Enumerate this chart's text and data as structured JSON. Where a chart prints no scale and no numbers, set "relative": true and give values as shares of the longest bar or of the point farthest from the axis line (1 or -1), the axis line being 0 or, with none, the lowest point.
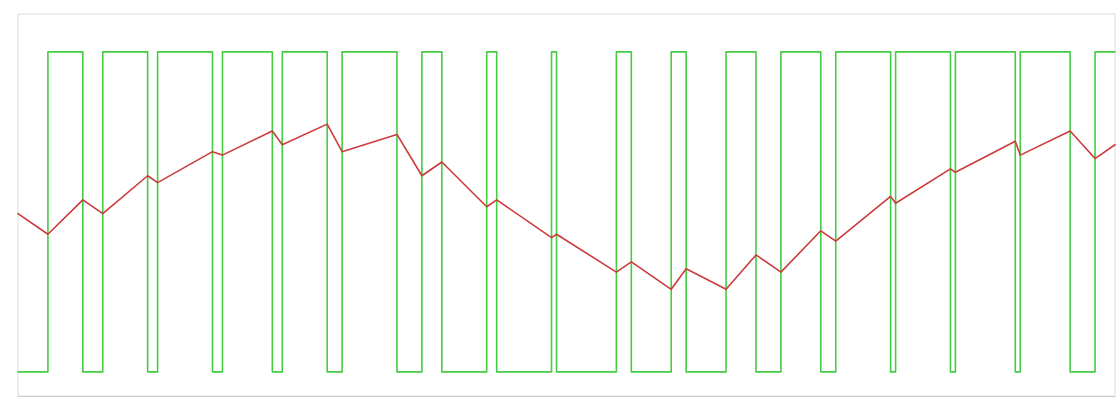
{
  "chart_data": {
    "type": "line",
    "relative": true,
    "marker": "none",
    "line_style": "solid",
    "categories": [
      null,
      null,
      null,
      null,
      null,
      null,
      null,
      null,
      null,
      null,
      null,
      null,
      null,
      null,
      null,
      null,
      null,
      null,
      null,
      null,
      null,
      null,
      null,
      null,
      null,
      null,
      null,
      null,
      null,
      null,
      null,
      null,
      null,
      null,
      null,
      null,
      null,
      null,
      null,
      null,
      null,
      null,
      null,
      null,
      null,
      null,
      null,
      null,
      null,
      null,
      null,
      null,
      null,
      null,
      null,
      null,
      null,
      null,
      null,
      null,
      null,
      null,
      null,
      null,
      null,
      null,
      null,
      null,
      null,
      null,
      null,
      null,
      null,
      null,
      null,
      null,
      null,
      null,
      null,
      null,
      null,
      null,
      null,
      null,
      null,
      null,
      null,
      null,
      null,
      null,
      null,
      null,
      null,
      null,
      null,
      null,
      null,
      null,
      null,
      null,
      null,
      null,
      null,
      null,
      null,
      null,
      null,
      null,
      null,
      null,
      null,
      null,
      null,
      null,
      null,
      null,
      null,
      null,
      null,
      null,
      null,
      null,
      null,
      null,
      null,
      null,
      null,
      null,
      null,
      null,
      null,
      null,
      null,
      null,
      null,
      null,
      null,
      null,
      null,
      null,
      null,
      null,
      null,
      null,
      null,
      null,
      null,
      null,
      null,
      null,
      null,
      null,
      null,
      null,
      null,
      null,
      null,
      null,
      null,
      null,
      null,
      null,
      null,
      null,
      null,
      null,
      null,
      null,
      null,
      null,
      null,
      null,
      null,
      null,
      null,
      null,
      null,
      null,
      null,
      null,
      null,
      null,
      null,
      null,
      null,
      null,
      null,
      null,
      null,
      null,
      null,
      null,
      null,
      null,
      null,
      null,
      null,
      null,
      null,
      null,
      null,
      null,
      null,
      null,
      null,
      null,
      null,
      null,
      null,
      null,
      null,
      null,
      null,
      null,
      null,
      null,
      null,
      null,
      null,
      null,
      null
    ],
    "series": [
      {
        "type": "step",
        "color": "#44cc44",
        "values": [
          0.07,
          null,
          null,
          null,
          null,
          null,
          1,
          null,
          null,
          null,
          null,
          null,
          null,
          0.07,
          null,
          null,
          null,
          1,
          null,
          null,
          null,
          null,
          null,
          null,
          null,
          null,
          0.07,
          null,
          1,
          null,
          null,
          null,
          null,
          null,
          null,
          null,
          null,
          null,
          null,
          0.07,
          null,
          1,
          null,
          null,
          null,
          null,
          null,
          null,
          null,
          null,
          null,
          0.07,
          null,
          1,
          null,
          null,
          null,
          null,
          null,
          null,
          null,
          null,
          0.07,
          null,
          null,
          1,
          null,
          null,
          null,
          null,
          null,
          null,
          null,
          null,
          null,
          null,
          0.07,
          null,
          null,
          null,
          null,
          1,
          null,
          null,
          null,
          0.07,
          null,
          null,
          null,
          null,
          null,
          null,
          null,
          null,
          1,
          null,
          0.07,
          null,
          null,
          null,
          null,
          null,
          null,
          null,
          null,
          null,
          null,
          1,
          0.07,
          null,
          null,
          null,
          null,
          null,
          null,
          null,
          null,
          null,
          null,
          null,
          1,
          null,
          null,
          0.07,
          null,
          null,
          null,
          null,
          null,
          null,
          null,
          1,
          null,
          null,
          0.07,
          null,
          null,
          null,
          null,
          null,
          null,
          null,
          1,
          null,
          null,
          null,
          null,
          null,
          0.07,
          null,
          null,
          null,
          null,
          1,
          null,
          null,
          null,
          null,
          null,
          null,
          null,
          0.07,
          null,
          null,
          1,
          null,
          null,
          null,
          null,
          null,
          null,
          null,
          null,
          null,
          null,
          0.07,
          1,
          null,
          null,
          null,
          null,
          null,
          null,
          null,
          null,
          null,
          null,
          0.07,
          1,
          null,
          null,
          null,
          null,
          null,
          null,
          null,
          null,
          null,
          null,
          null,
          0.07,
          1,
          null,
          null,
          null,
          null,
          null,
          null,
          null,
          null,
          null,
          0.07,
          null,
          null,
          null,
          null,
          1,
          null,
          null,
          null,
          1
        ]
      },
      {
        "color": "#cc3b3b",
        "values": [
          0.53,
          null,
          null,
          null,
          null,
          null,
          0.47,
          null,
          null,
          null,
          null,
          null,
          null,
          0.57,
          null,
          null,
          null,
          0.53,
          null,
          null,
          null,
          null,
          null,
          null,
          null,
          null,
          0.64,
          null,
          0.62,
          null,
          null,
          null,
          null,
          null,
          null,
          null,
          null,
          null,
          null,
          0.71,
          null,
          0.7,
          null,
          null,
          null,
          null,
          null,
          null,
          null,
          null,
          null,
          0.77,
          null,
          0.73,
          null,
          null,
          null,
          null,
          null,
          null,
          null,
          null,
          0.79,
          null,
          null,
          0.71,
          null,
          null,
          null,
          null,
          null,
          null,
          null,
          null,
          null,
          null,
          0.76,
          null,
          null,
          null,
          null,
          0.64,
          null,
          null,
          null,
          0.68,
          null,
          null,
          null,
          null,
          null,
          null,
          null,
          null,
          0.55,
          null,
          0.57,
          null,
          null,
          null,
          null,
          null,
          null,
          null,
          null,
          null,
          null,
          0.46,
          0.47,
          null,
          null,
          null,
          null,
          null,
          null,
          null,
          null,
          null,
          null,
          null,
          0.36,
          null,
          null,
          0.39,
          null,
          null,
          null,
          null,
          null,
          null,
          null,
          0.31,
          null,
          null,
          0.37,
          null,
          null,
          null,
          null,
          null,
          null,
          null,
          0.31,
          null,
          null,
          null,
          null,
          null,
          0.41,
          null,
          null,
          null,
          null,
          0.36,
          null,
          null,
          null,
          null,
          null,
          null,
          null,
          0.48,
          null,
          null,
          0.45,
          null,
          null,
          null,
          null,
          null,
          null,
          null,
          null,
          null,
          null,
          0.58,
          0.56,
          null,
          null,
          null,
          null,
          null,
          null,
          null,
          null,
          null,
          null,
          0.66,
          0.65,
          null,
          null,
          null,
          null,
          null,
          null,
          null,
          null,
          null,
          null,
          null,
          0.74,
          0.7,
          null,
          null,
          null,
          null,
          null,
          null,
          null,
          null,
          null,
          0.77,
          null,
          null,
          null,
          null,
          0.69,
          null,
          null,
          null,
          0.73
        ]
      }
    ]
  }
}
